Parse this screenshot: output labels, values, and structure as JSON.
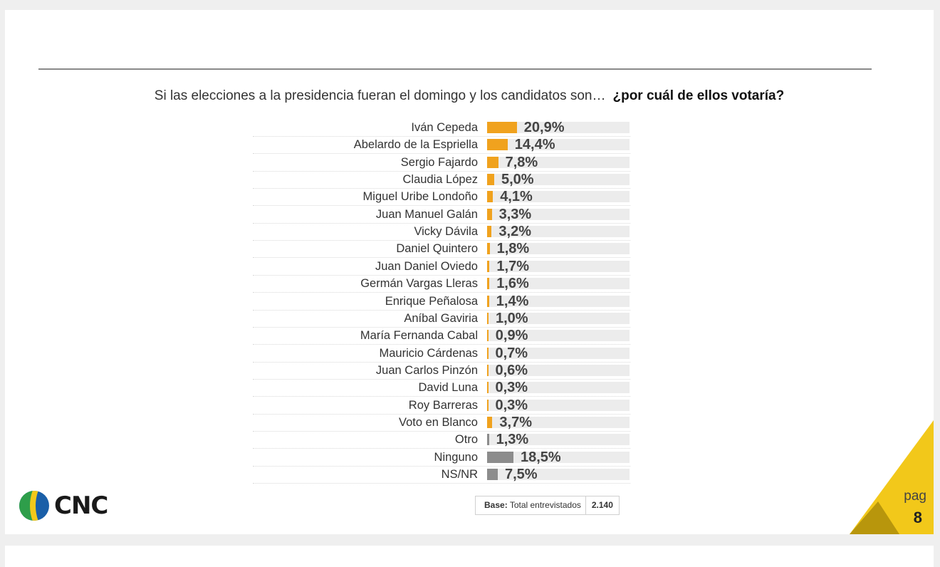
{
  "question": {
    "text": "Si las elecciones a la presidencia fueran el domingo y los candidatos son…",
    "bold": "¿por cuál de ellos votaría?"
  },
  "chart_data": {
    "type": "bar",
    "orientation": "horizontal",
    "categories": [
      "Iván Cepeda",
      "Abelardo de la Espriella",
      "Sergio Fajardo",
      "Claudia López",
      "Miguel Uribe Londoño",
      "Juan Manuel Galán",
      "Vicky Dávila",
      "Daniel Quintero",
      "Juan Daniel Oviedo",
      "Germán Vargas Lleras",
      "Enrique Peñalosa",
      "Aníbal Gaviria",
      "María Fernanda Cabal",
      "Mauricio Cárdenas",
      "Juan Carlos Pinzón",
      "David Luna",
      "Roy Barreras",
      "Voto en Blanco",
      "Otro",
      "Ninguno",
      "NS/NR"
    ],
    "values": [
      20.9,
      14.4,
      7.8,
      5.0,
      4.1,
      3.3,
      3.2,
      1.8,
      1.7,
      1.6,
      1.4,
      1.0,
      0.9,
      0.7,
      0.6,
      0.3,
      0.3,
      3.7,
      1.3,
      18.5,
      7.5
    ],
    "labels": [
      "20,9%",
      "14,4%",
      "7,8%",
      "5,0%",
      "4,1%",
      "3,3%",
      "3,2%",
      "1,8%",
      "1,7%",
      "1,6%",
      "1,4%",
      "1,0%",
      "0,9%",
      "0,7%",
      "0,6%",
      "0,3%",
      "0,3%",
      "3,7%",
      "1,3%",
      "18,5%",
      "7,5%"
    ],
    "bar_colors": [
      "#f0a21e",
      "#f0a21e",
      "#f0a21e",
      "#f0a21e",
      "#f0a21e",
      "#f0a21e",
      "#f0a21e",
      "#f0a21e",
      "#f0a21e",
      "#f0a21e",
      "#f0a21e",
      "#f0a21e",
      "#f0a21e",
      "#f0a21e",
      "#f0a21e",
      "#f0a21e",
      "#f0a21e",
      "#f0a21e",
      "#8c8c8c",
      "#8c8c8c",
      "#8c8c8c"
    ],
    "xlim": [
      0,
      100
    ],
    "unit": "%"
  },
  "base": {
    "label_bold": "Base:",
    "label": "Total entrevistados",
    "value": "2.140"
  },
  "logo": {
    "text": "CNC"
  },
  "page": {
    "label": "pag",
    "number": "8"
  },
  "colors": {
    "accent_orange": "#f0a21e",
    "neutral_gray": "#8c8c8c",
    "corner_yellow": "#f2c81a",
    "corner_dark": "#c9a70f"
  }
}
